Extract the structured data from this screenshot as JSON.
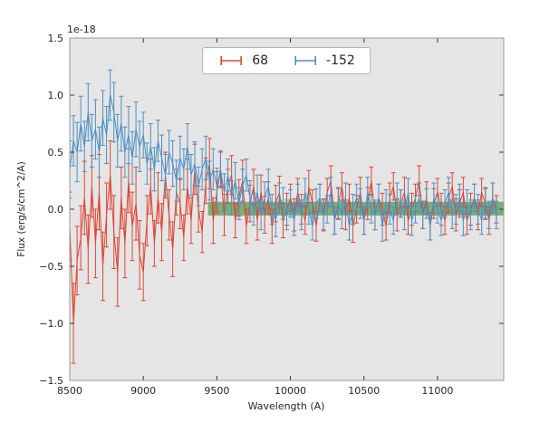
{
  "chart_data": {
    "type": "line",
    "title": "",
    "offset_label": "1e-18",
    "xlabel": "Wavelength (A)",
    "ylabel": "Flux (erg/s/cm^2/A)",
    "xlim": [
      8500,
      11450
    ],
    "ylim": [
      -1.5,
      1.5
    ],
    "xticks": [
      8500,
      9000,
      9500,
      10000,
      10500,
      11000
    ],
    "yticks": [
      -1.5,
      -1.0,
      -0.5,
      0.0,
      0.5,
      1.0,
      1.5
    ],
    "grid": false,
    "legend_position": "upper center",
    "axes_background": "#e5e5e5",
    "spine_color": "#999999",
    "tick_color": "#333333",
    "band": {
      "label": "zero-flux-band",
      "x0": 9440,
      "x1": 11450,
      "y0": -0.055,
      "y1": 0.065,
      "color": "#2e8b2e",
      "opacity": 0.6
    },
    "series": [
      {
        "name": "68",
        "color": "#dd4632",
        "x_start": 8500,
        "x_step": 25,
        "y": [
          -0.15,
          -1.0,
          -0.45,
          -0.25,
          0.1,
          -0.35,
          0.2,
          -0.3,
          0.15,
          -0.5,
          -0.05,
          0.3,
          -0.2,
          -0.55,
          0.1,
          -0.3,
          0.25,
          -0.15,
          0.05,
          -0.4,
          -0.55,
          -0.1,
          0.2,
          -0.3,
          0.1,
          -0.2,
          0.3,
          -0.05,
          -0.35,
          0.15,
          0.05,
          -0.25,
          0.2,
          -0.1,
          0.35,
          0.0,
          -0.2,
          0.25,
          0.4,
          -0.1,
          0.15,
          0.35,
          -0.05,
          0.2,
          0.3,
          -0.1,
          0.1,
          0.25,
          -0.15,
          0.05,
          0.2,
          -0.1,
          0.15,
          -0.05,
          0.1,
          -0.15,
          0.05,
          0.15,
          -0.1,
          0.0,
          0.1,
          -0.05,
          0.15,
          0.0,
          -0.1,
          0.2,
          0.05,
          -0.15,
          0.1,
          -0.05,
          0.15,
          0.25,
          -0.1,
          0.05,
          0.2,
          -0.05,
          0.1,
          -0.15,
          0.0,
          0.15,
          -0.1,
          0.05,
          0.25,
          -0.05,
          0.1,
          0.0,
          -0.15,
          0.1,
          0.2,
          -0.05,
          0.05,
          0.15,
          -0.1,
          0.0,
          0.1,
          0.25,
          -0.05,
          0.1,
          -0.15,
          0.05,
          0.15,
          0.0,
          -0.1,
          0.1,
          0.2,
          -0.05,
          0.05,
          0.15,
          -0.1,
          0.0,
          0.1,
          -0.05,
          0.15,
          0.05,
          -0.1,
          0.1,
          0.0
        ],
        "yerr": [
          0.3,
          0.35,
          0.3,
          0.28,
          0.32,
          0.3,
          0.27,
          0.3,
          0.33,
          0.3,
          0.28,
          0.3,
          0.32,
          0.3,
          0.27,
          0.3,
          0.28,
          0.3,
          0.32,
          0.3,
          0.25,
          0.22,
          0.24,
          0.2,
          0.22,
          0.25,
          0.2,
          0.22,
          0.24,
          0.2,
          0.22,
          0.2,
          0.24,
          0.2,
          0.22,
          0.2,
          0.18,
          0.2,
          0.22,
          0.2,
          0.18,
          0.16,
          0.18,
          0.15,
          0.17,
          0.15,
          0.16,
          0.18,
          0.15,
          0.16,
          0.15,
          0.17,
          0.15,
          0.16,
          0.14,
          0.15,
          0.16,
          0.14,
          0.15,
          0.14,
          0.12,
          0.14,
          0.12,
          0.13,
          0.12,
          0.14,
          0.12,
          0.13,
          0.12,
          0.14,
          0.12,
          0.13,
          0.12,
          0.14,
          0.12,
          0.13,
          0.12,
          0.14,
          0.12,
          0.13,
          0.12,
          0.14,
          0.12,
          0.13,
          0.12,
          0.14,
          0.12,
          0.13,
          0.12,
          0.14,
          0.12,
          0.13,
          0.12,
          0.14,
          0.12,
          0.13,
          0.12,
          0.14,
          0.12,
          0.13,
          0.12,
          0.14,
          0.12,
          0.13,
          0.12,
          0.14,
          0.12,
          0.13,
          0.12,
          0.14,
          0.12,
          0.13,
          0.12,
          0.14,
          0.12,
          0.13,
          0.12
        ]
      },
      {
        "name": "-152",
        "color": "#4a90c4",
        "x_start": 8500,
        "x_step": 25,
        "y": [
          0.35,
          0.6,
          0.5,
          0.75,
          0.55,
          0.85,
          0.6,
          0.7,
          0.5,
          0.8,
          0.65,
          1.0,
          0.85,
          0.6,
          0.75,
          0.5,
          0.65,
          0.45,
          0.7,
          0.55,
          0.65,
          0.4,
          0.55,
          0.35,
          0.6,
          0.45,
          0.3,
          0.5,
          0.4,
          0.25,
          0.45,
          0.35,
          0.55,
          0.3,
          0.4,
          0.2,
          0.35,
          0.45,
          0.25,
          0.35,
          0.2,
          0.35,
          0.15,
          0.3,
          0.1,
          0.25,
          0.05,
          0.2,
          0.3,
          0.1,
          0.0,
          0.15,
          -0.05,
          0.1,
          0.2,
          0.0,
          -0.1,
          0.1,
          0.05,
          -0.05,
          0.05,
          -0.1,
          0.1,
          -0.05,
          0.15,
          0.0,
          -0.15,
          0.05,
          0.1,
          -0.05,
          0.0,
          0.15,
          -0.1,
          0.05,
          -0.05,
          0.1,
          -0.15,
          0.0,
          0.1,
          0.05,
          -0.1,
          0.15,
          0.0,
          -0.05,
          0.1,
          -0.15,
          0.05,
          0.0,
          -0.1,
          0.1,
          0.05,
          -0.05,
          0.15,
          -0.1,
          0.0,
          0.1,
          -0.05,
          0.05,
          -0.15,
          0.1,
          0.0,
          -0.1,
          0.05,
          0.15,
          -0.05,
          0.0,
          0.1,
          -0.1,
          0.05,
          -0.05,
          0.1,
          0.0,
          -0.1,
          0.05,
          -0.05,
          0.1,
          -0.05
        ],
        "yerr": [
          0.25,
          0.22,
          0.26,
          0.24,
          0.22,
          0.25,
          0.23,
          0.26,
          0.22,
          0.24,
          0.25,
          0.22,
          0.26,
          0.23,
          0.24,
          0.22,
          0.25,
          0.23,
          0.24,
          0.22,
          0.2,
          0.18,
          0.2,
          0.19,
          0.18,
          0.2,
          0.18,
          0.19,
          0.2,
          0.18,
          0.19,
          0.18,
          0.2,
          0.18,
          0.19,
          0.17,
          0.18,
          0.19,
          0.17,
          0.18,
          0.16,
          0.15,
          0.16,
          0.14,
          0.15,
          0.16,
          0.14,
          0.15,
          0.14,
          0.15,
          0.14,
          0.15,
          0.13,
          0.14,
          0.15,
          0.13,
          0.14,
          0.13,
          0.14,
          0.13,
          0.12,
          0.13,
          0.12,
          0.13,
          0.12,
          0.13,
          0.12,
          0.13,
          0.12,
          0.13,
          0.12,
          0.13,
          0.12,
          0.13,
          0.12,
          0.13,
          0.12,
          0.13,
          0.12,
          0.13,
          0.12,
          0.13,
          0.12,
          0.13,
          0.12,
          0.13,
          0.12,
          0.13,
          0.12,
          0.13,
          0.12,
          0.13,
          0.12,
          0.13,
          0.12,
          0.13,
          0.12,
          0.13,
          0.12,
          0.13,
          0.12,
          0.13,
          0.12,
          0.13,
          0.12,
          0.13,
          0.12,
          0.13,
          0.12,
          0.13,
          0.12,
          0.13,
          0.12,
          0.13,
          0.12,
          0.13,
          0.12
        ]
      }
    ]
  }
}
